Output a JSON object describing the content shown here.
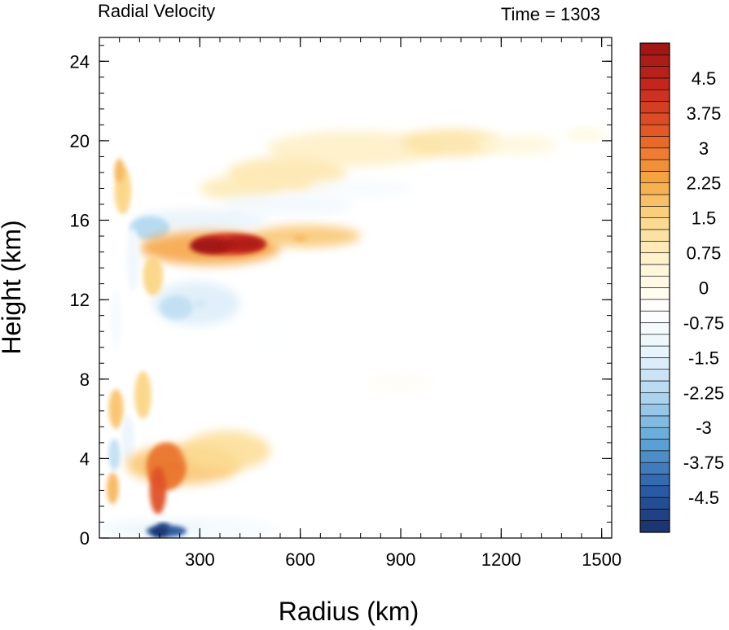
{
  "chart_data": {
    "type": "heatmap",
    "title_left": "Radial Velocity",
    "title_right": "Time = 1303",
    "xlabel": "Radius (km)",
    "ylabel": "Height (km)",
    "xlim": [
      0,
      1530
    ],
    "ylim": [
      0,
      25.2
    ],
    "x_ticks": [
      300,
      600,
      900,
      1200,
      1500
    ],
    "x_tick_labels": [
      "300",
      "600",
      "900",
      "1200",
      "1500"
    ],
    "y_ticks": [
      0,
      4,
      8,
      12,
      16,
      20,
      24
    ],
    "y_tick_labels": [
      "0",
      "4",
      "8",
      "12",
      "16",
      "20",
      "24"
    ],
    "colorbar": {
      "levels": [
        -5.25,
        5.25
      ],
      "step": 0.25,
      "tick_values": [
        4.5,
        3.75,
        3,
        2.25,
        1.5,
        0.75,
        0,
        -0.75,
        -1.5,
        -2.25,
        -3,
        -3.75,
        -4.5
      ],
      "tick_labels": [
        "4.5",
        "3.75",
        "3",
        "2.25",
        "1.5",
        "0.75",
        "0",
        "-0.75",
        "-1.5",
        "-2.25",
        "-3",
        "-3.75",
        "-4.5"
      ],
      "colormap_anchors": [
        "#1a2f6b",
        "#2a5ea8",
        "#5da2d6",
        "#a9d3ee",
        "#e6f3fb",
        "#ffffff",
        "#fff6d6",
        "#fbd98a",
        "#f5a23e",
        "#e45a26",
        "#c8281f",
        "#9a1414"
      ]
    },
    "features": [
      {
        "name": "upper-outflow-jet",
        "x": 380,
        "y": 14.7,
        "value": 5.0
      },
      {
        "name": "upper-outflow-arm",
        "x": 600,
        "y": 15.1,
        "value": 2.0
      },
      {
        "name": "low-level-inflow",
        "x": 190,
        "y": 0.6,
        "value": -5.0
      },
      {
        "name": "lower-outflow",
        "x": 220,
        "y": 3.6,
        "value": 3.0
      },
      {
        "name": "midlevel-inflow",
        "x": 300,
        "y": 11.8,
        "value": -1.8
      },
      {
        "name": "upper-inflow-band",
        "x": 400,
        "y": 16.3,
        "value": -1.2
      },
      {
        "name": "top-outflow-band",
        "x": 1000,
        "y": 19.8,
        "value": 1.0
      }
    ]
  }
}
